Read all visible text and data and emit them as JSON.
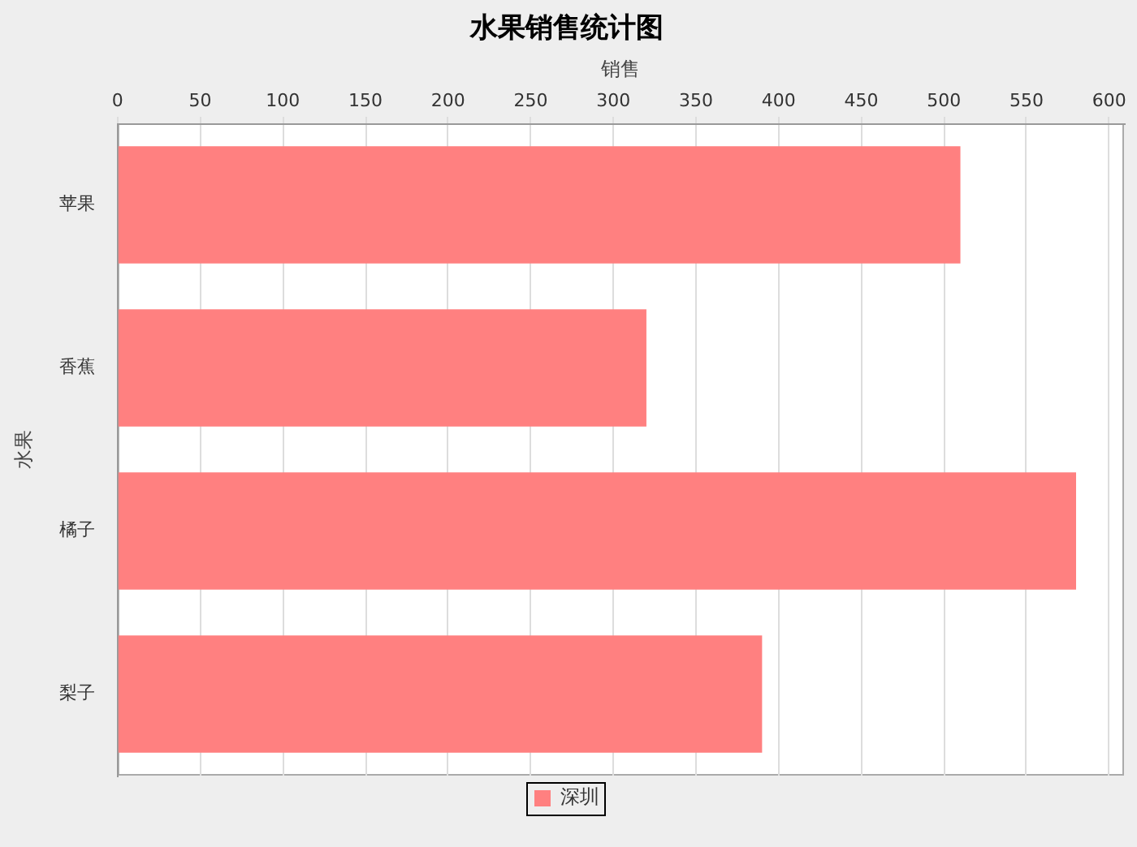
{
  "chart_data": {
    "type": "bar",
    "title": "水果销售统计图",
    "xlabel": "销售",
    "ylabel": "水果",
    "orientation": "horizontal",
    "categories": [
      "苹果",
      "香蕉",
      "橘子",
      "梨子"
    ],
    "series": [
      {
        "name": "深圳",
        "color": "#ff8080",
        "values": [
          510,
          320,
          580,
          390
        ]
      }
    ],
    "xlim": [
      0,
      609
    ],
    "xticks": [
      0,
      50,
      100,
      150,
      200,
      250,
      300,
      350,
      400,
      450,
      500,
      550,
      600
    ],
    "grid": "x",
    "legend": "bottom"
  }
}
